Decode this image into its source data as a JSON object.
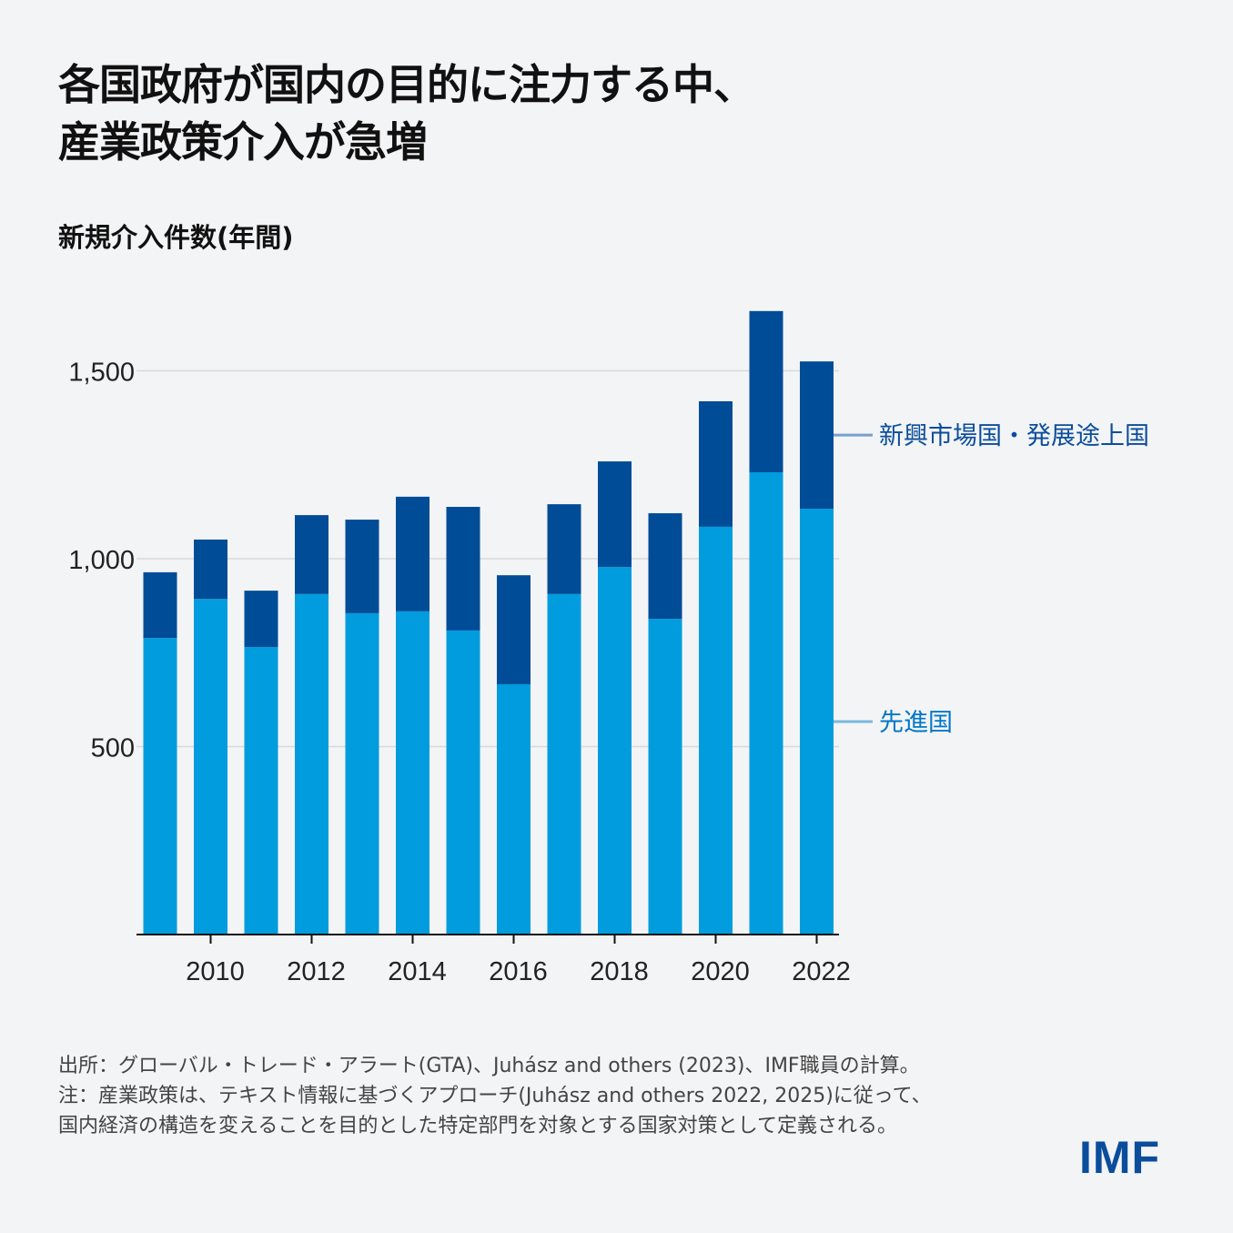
{
  "title_lines": [
    "各国政府が国内の目的に注力する中、",
    "産業政策介入が急増"
  ],
  "chart_data": {
    "type": "bar",
    "stacked": true,
    "ylabel": "新規介入件数(年間)",
    "ylim": [
      0,
      1700
    ],
    "yticks": [
      500,
      1000,
      1500
    ],
    "ytick_labels": [
      "500",
      "1,000",
      "1,500"
    ],
    "categories": [
      2009,
      2010,
      2011,
      2012,
      2013,
      2014,
      2015,
      2016,
      2017,
      2018,
      2019,
      2020,
      2021,
      2022
    ],
    "xtick_labels": [
      "2010",
      "2012",
      "2014",
      "2016",
      "2018",
      "2020",
      "2022"
    ],
    "grid": true,
    "legend": "right (direct labels)",
    "series": [
      {
        "name": "先進国",
        "color": "#009cde",
        "values": [
          789,
          893,
          765,
          906,
          855,
          860,
          809,
          666,
          906,
          978,
          840,
          1085,
          1230,
          1133
        ]
      },
      {
        "name": "新興市場国・発展途上国",
        "color": "#004c97",
        "values": [
          175,
          158,
          150,
          210,
          249,
          305,
          329,
          290,
          239,
          281,
          281,
          334,
          429,
          392
        ]
      }
    ]
  },
  "footer": [
    "出所：グローバル・トレード・アラート(GTA)、Juhász and others (2023)、IMF職員の計算。",
    "注：産業政策は、テキスト情報に基づくアプローチ(Juhász and others 2022, 2025)に従って、",
    "国内経済の構造を変えることを目的とした特定部門を対象とする国家対策として定義される。"
  ],
  "logo": "IMF"
}
